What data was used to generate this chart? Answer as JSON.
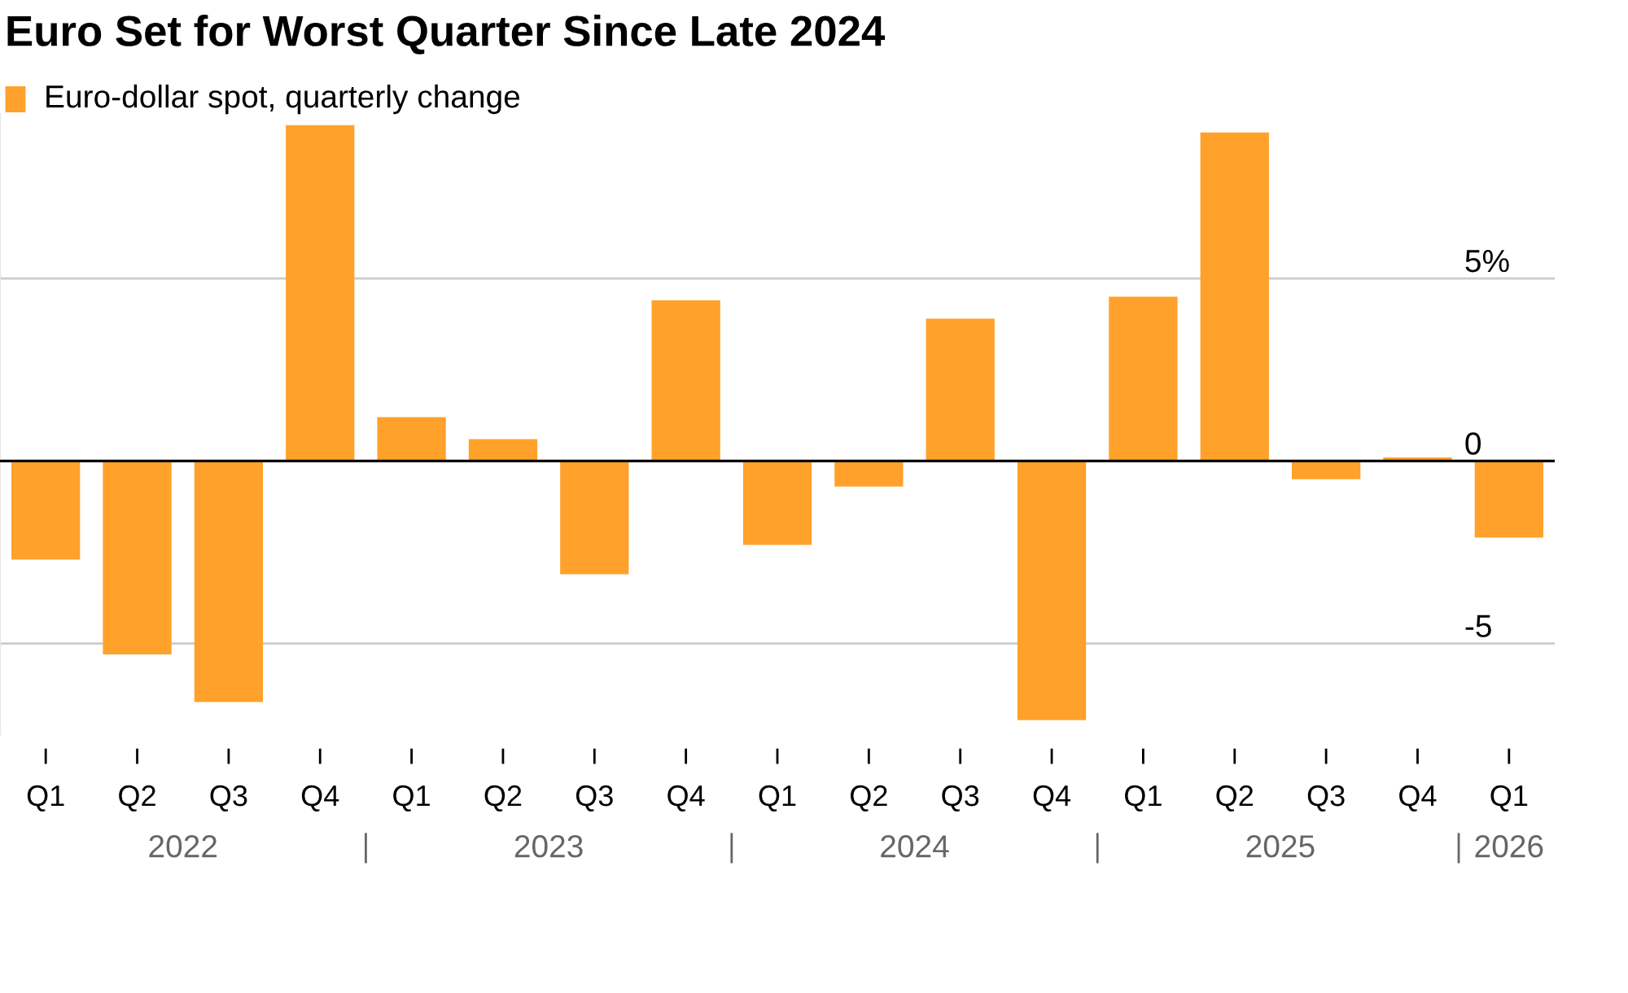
{
  "chart_data": {
    "type": "bar",
    "title": "Euro Set for Worst Quarter Since Late 2024",
    "categories": [
      "Q1",
      "Q2",
      "Q3",
      "Q4",
      "Q1",
      "Q2",
      "Q3",
      "Q4",
      "Q1",
      "Q2",
      "Q3",
      "Q4",
      "Q1",
      "Q2",
      "Q3",
      "Q4",
      "Q1"
    ],
    "series": [
      {
        "name": "Euro-dollar spot, quarterly change",
        "color": "#ffa12b",
        "values": [
          -2.7,
          -5.3,
          -6.6,
          9.2,
          1.2,
          0.6,
          -3.1,
          4.4,
          -2.3,
          -0.7,
          3.9,
          -7.1,
          4.5,
          9.0,
          -0.5,
          0.1,
          -2.1
        ]
      }
    ],
    "ylim": [
      -7.5,
      9.5
    ],
    "yticks": [
      {
        "value": 5,
        "label": "5%"
      },
      0,
      -5
    ],
    "annotations": [
      "2022",
      "2023",
      "2024",
      "2025",
      "2026"
    ],
    "grid": "y",
    "legend": "top left"
  }
}
